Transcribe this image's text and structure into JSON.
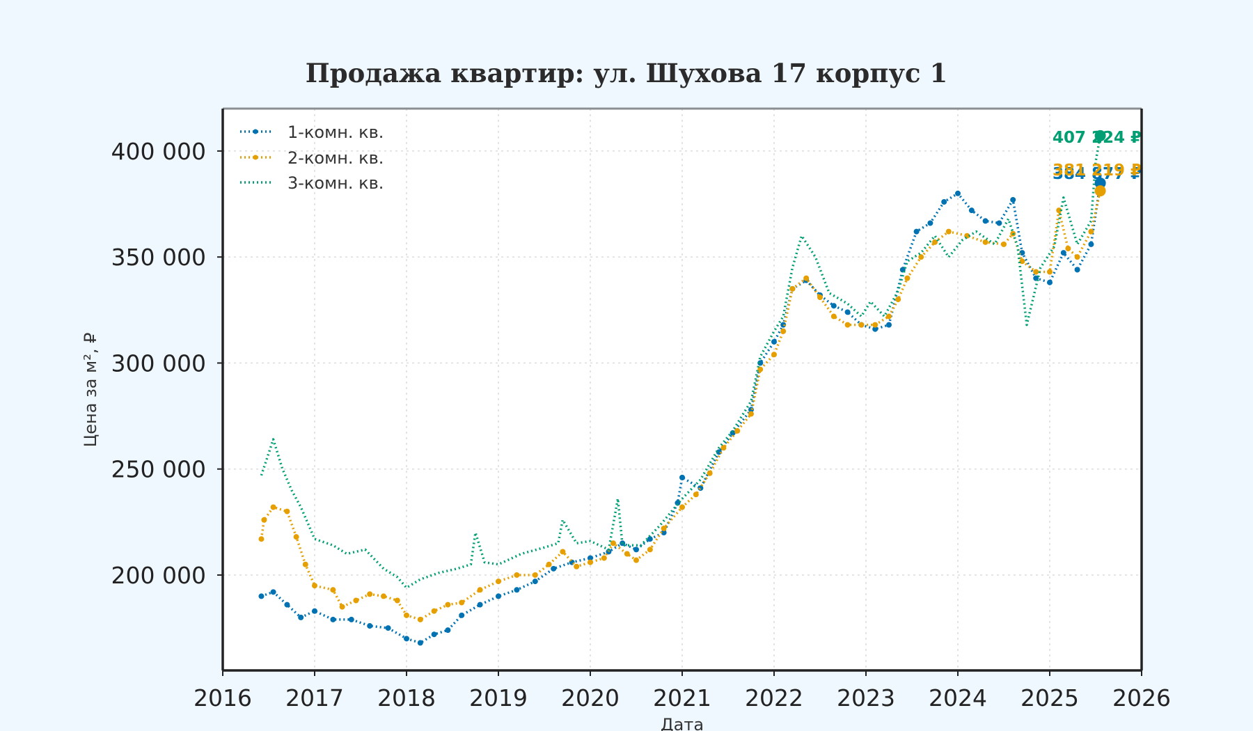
{
  "chart_data": {
    "type": "line",
    "title": "Продажа квартир: ул. Шухова 17 корпус 1",
    "xlabel": "Дата",
    "ylabel": "Цена за м², ₽",
    "xlim": [
      2016,
      2026
    ],
    "ylim": [
      155000,
      420000
    ],
    "x_ticks": [
      2016,
      2017,
      2018,
      2019,
      2020,
      2021,
      2022,
      2023,
      2024,
      2025,
      2026
    ],
    "x_tick_labels": [
      "2016",
      "2017",
      "2018",
      "2019",
      "2020",
      "2021",
      "2022",
      "2023",
      "2024",
      "2025",
      "2026"
    ],
    "y_ticks": [
      200000,
      250000,
      300000,
      350000,
      400000
    ],
    "y_tick_labels": [
      "200 000",
      "250 000",
      "300 000",
      "350 000",
      "400 000"
    ],
    "grid": true,
    "legend_position": "top-left",
    "series": [
      {
        "name": "1-комн. кв.",
        "color": "#0072b2",
        "markers": true,
        "end_label": "384 877 ₽",
        "end_value": 384877,
        "end_x": 2025.55,
        "points": [
          [
            2016.42,
            190000
          ],
          [
            2016.55,
            192000
          ],
          [
            2016.7,
            186000
          ],
          [
            2016.85,
            180000
          ],
          [
            2017.0,
            183000
          ],
          [
            2017.2,
            179000
          ],
          [
            2017.4,
            179000
          ],
          [
            2017.6,
            176000
          ],
          [
            2017.8,
            175000
          ],
          [
            2018.0,
            170000
          ],
          [
            2018.15,
            168000
          ],
          [
            2018.3,
            172000
          ],
          [
            2018.45,
            174000
          ],
          [
            2018.6,
            181000
          ],
          [
            2018.8,
            186000
          ],
          [
            2019.0,
            190000
          ],
          [
            2019.2,
            193000
          ],
          [
            2019.4,
            197000
          ],
          [
            2019.6,
            203000
          ],
          [
            2019.8,
            206000
          ],
          [
            2020.0,
            208000
          ],
          [
            2020.2,
            211000
          ],
          [
            2020.35,
            215000
          ],
          [
            2020.5,
            212000
          ],
          [
            2020.65,
            217000
          ],
          [
            2020.8,
            220000
          ],
          [
            2020.95,
            234000
          ],
          [
            2021.0,
            246000
          ],
          [
            2021.2,
            241000
          ],
          [
            2021.4,
            258000
          ],
          [
            2021.55,
            267000
          ],
          [
            2021.75,
            278000
          ],
          [
            2021.85,
            300000
          ],
          [
            2022.0,
            310000
          ],
          [
            2022.1,
            318000
          ],
          [
            2022.2,
            335000
          ],
          [
            2022.35,
            339000
          ],
          [
            2022.5,
            332000
          ],
          [
            2022.65,
            327000
          ],
          [
            2022.8,
            324000
          ],
          [
            2022.95,
            318000
          ],
          [
            2023.1,
            316000
          ],
          [
            2023.25,
            318000
          ],
          [
            2023.4,
            344000
          ],
          [
            2023.55,
            362000
          ],
          [
            2023.7,
            366000
          ],
          [
            2023.85,
            376000
          ],
          [
            2024.0,
            380000
          ],
          [
            2024.15,
            372000
          ],
          [
            2024.3,
            367000
          ],
          [
            2024.45,
            366000
          ],
          [
            2024.6,
            377000
          ],
          [
            2024.7,
            352000
          ],
          [
            2024.85,
            340000
          ],
          [
            2025.0,
            338000
          ],
          [
            2025.15,
            352000
          ],
          [
            2025.3,
            344000
          ],
          [
            2025.45,
            356000
          ],
          [
            2025.55,
            384877
          ]
        ]
      },
      {
        "name": "2-комн. кв.",
        "color": "#e69f00",
        "markers": true,
        "end_label": "381 219 ₽",
        "end_value": 381219,
        "end_x": 2025.55,
        "points": [
          [
            2016.42,
            217000
          ],
          [
            2016.45,
            226000
          ],
          [
            2016.55,
            232000
          ],
          [
            2016.7,
            230000
          ],
          [
            2016.8,
            218000
          ],
          [
            2016.9,
            205000
          ],
          [
            2017.0,
            195000
          ],
          [
            2017.2,
            193000
          ],
          [
            2017.3,
            185000
          ],
          [
            2017.45,
            188000
          ],
          [
            2017.6,
            191000
          ],
          [
            2017.75,
            190000
          ],
          [
            2017.9,
            188000
          ],
          [
            2018.0,
            181000
          ],
          [
            2018.15,
            179000
          ],
          [
            2018.3,
            183000
          ],
          [
            2018.45,
            186000
          ],
          [
            2018.6,
            187000
          ],
          [
            2018.8,
            193000
          ],
          [
            2019.0,
            197000
          ],
          [
            2019.2,
            200000
          ],
          [
            2019.4,
            200000
          ],
          [
            2019.55,
            205000
          ],
          [
            2019.7,
            211000
          ],
          [
            2019.85,
            204000
          ],
          [
            2020.0,
            206000
          ],
          [
            2020.15,
            208000
          ],
          [
            2020.25,
            215000
          ],
          [
            2020.4,
            210000
          ],
          [
            2020.5,
            207000
          ],
          [
            2020.65,
            212000
          ],
          [
            2020.8,
            222000
          ],
          [
            2021.0,
            232000
          ],
          [
            2021.15,
            238000
          ],
          [
            2021.3,
            248000
          ],
          [
            2021.45,
            260000
          ],
          [
            2021.6,
            268000
          ],
          [
            2021.75,
            276000
          ],
          [
            2021.85,
            297000
          ],
          [
            2022.0,
            304000
          ],
          [
            2022.1,
            315000
          ],
          [
            2022.2,
            335000
          ],
          [
            2022.35,
            340000
          ],
          [
            2022.5,
            331000
          ],
          [
            2022.65,
            322000
          ],
          [
            2022.8,
            318000
          ],
          [
            2022.95,
            318000
          ],
          [
            2023.1,
            318000
          ],
          [
            2023.25,
            322000
          ],
          [
            2023.35,
            330000
          ],
          [
            2023.45,
            340000
          ],
          [
            2023.6,
            350000
          ],
          [
            2023.75,
            357000
          ],
          [
            2023.9,
            362000
          ],
          [
            2024.1,
            360000
          ],
          [
            2024.3,
            357000
          ],
          [
            2024.5,
            356000
          ],
          [
            2024.6,
            361000
          ],
          [
            2024.7,
            348000
          ],
          [
            2024.85,
            343000
          ],
          [
            2025.0,
            343000
          ],
          [
            2025.1,
            372000
          ],
          [
            2025.2,
            354000
          ],
          [
            2025.3,
            350000
          ],
          [
            2025.45,
            362000
          ],
          [
            2025.55,
            381219
          ]
        ]
      },
      {
        "name": "3-комн. кв.",
        "color": "#009e73",
        "markers": false,
        "end_label": "407 224 ₽",
        "end_value": 407224,
        "end_x": 2025.55,
        "points": [
          [
            2016.42,
            247000
          ],
          [
            2016.55,
            264000
          ],
          [
            2016.65,
            250000
          ],
          [
            2016.75,
            240000
          ],
          [
            2016.85,
            232000
          ],
          [
            2017.0,
            217000
          ],
          [
            2017.2,
            214000
          ],
          [
            2017.35,
            210000
          ],
          [
            2017.55,
            212000
          ],
          [
            2017.75,
            203000
          ],
          [
            2017.9,
            199000
          ],
          [
            2018.0,
            194000
          ],
          [
            2018.15,
            198000
          ],
          [
            2018.35,
            201000
          ],
          [
            2018.55,
            203000
          ],
          [
            2018.7,
            205000
          ],
          [
            2018.75,
            220000
          ],
          [
            2018.85,
            206000
          ],
          [
            2019.0,
            205000
          ],
          [
            2019.25,
            210000
          ],
          [
            2019.5,
            213000
          ],
          [
            2019.65,
            215000
          ],
          [
            2019.7,
            226000
          ],
          [
            2019.85,
            215000
          ],
          [
            2020.0,
            216000
          ],
          [
            2020.2,
            212000
          ],
          [
            2020.3,
            236000
          ],
          [
            2020.35,
            214000
          ],
          [
            2020.55,
            214000
          ],
          [
            2020.75,
            223000
          ],
          [
            2021.0,
            236000
          ],
          [
            2021.2,
            245000
          ],
          [
            2021.4,
            260000
          ],
          [
            2021.55,
            268000
          ],
          [
            2021.75,
            282000
          ],
          [
            2021.85,
            303000
          ],
          [
            2022.0,
            315000
          ],
          [
            2022.1,
            322000
          ],
          [
            2022.2,
            345000
          ],
          [
            2022.3,
            360000
          ],
          [
            2022.45,
            350000
          ],
          [
            2022.6,
            333000
          ],
          [
            2022.8,
            328000
          ],
          [
            2022.95,
            322000
          ],
          [
            2023.05,
            329000
          ],
          [
            2023.2,
            322000
          ],
          [
            2023.35,
            334000
          ],
          [
            2023.45,
            348000
          ],
          [
            2023.6,
            352000
          ],
          [
            2023.75,
            360000
          ],
          [
            2023.9,
            350000
          ],
          [
            2024.05,
            358000
          ],
          [
            2024.2,
            362000
          ],
          [
            2024.4,
            356000
          ],
          [
            2024.55,
            368000
          ],
          [
            2024.65,
            355000
          ],
          [
            2024.75,
            318000
          ],
          [
            2024.9,
            345000
          ],
          [
            2025.05,
            355000
          ],
          [
            2025.15,
            378000
          ],
          [
            2025.3,
            356000
          ],
          [
            2025.45,
            367000
          ],
          [
            2025.5,
            395000
          ],
          [
            2025.55,
            407224
          ]
        ]
      }
    ]
  }
}
